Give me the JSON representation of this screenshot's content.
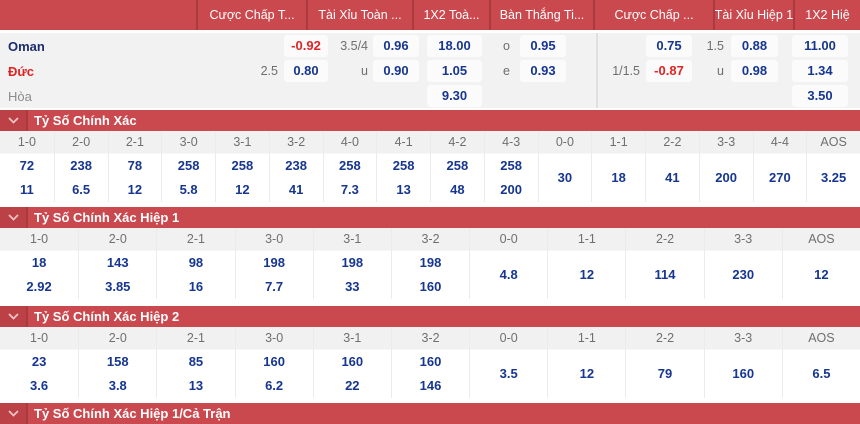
{
  "colors": {
    "accent_red": "#c9494f",
    "accent_red_dark": "#a93a40",
    "odds_blue": "#16368f",
    "negative_red": "#e02424"
  },
  "tabs": [
    "Cược Chấp T...",
    "Tài Xỉu Toàn ...",
    "1X2 Toà...",
    "Bàn Thắng Ti...",
    "Cược Chấp ...",
    "Tài Xỉu Hiệp 1",
    "1X2 Hiệ"
  ],
  "odds": {
    "rows": [
      {
        "team": "Oman",
        "hdp1_line": "",
        "hdp1_odds": "-0.92",
        "ou1_line": "3.5/4",
        "ou1_odds": "0.96",
        "x12": "18.00",
        "oe_side": "o",
        "oe_odds": "0.95",
        "hdp2_line": "",
        "hdp2_odds": "0.75",
        "ou2_line": "1.5",
        "ou2_odds": "0.88",
        "x12h": "11.00"
      },
      {
        "team": "Đức",
        "hdp1_line": "2.5",
        "hdp1_odds": "0.80",
        "ou1_line": "u",
        "ou1_odds": "0.90",
        "x12": "1.05",
        "oe_side": "e",
        "oe_odds": "0.93",
        "hdp2_line": "1/1.5",
        "hdp2_odds": "-0.87",
        "ou2_line": "u",
        "ou2_odds": "0.98",
        "x12h": "1.34"
      },
      {
        "team": "Hòa",
        "x12": "9.30",
        "x12h": "3.50"
      }
    ]
  },
  "sections": [
    {
      "title": "Tỷ Số Chính Xác",
      "columns": [
        "1-0",
        "2-0",
        "2-1",
        "3-0",
        "3-1",
        "3-2",
        "4-0",
        "4-1",
        "4-2",
        "4-3",
        "0-0",
        "1-1",
        "2-2",
        "3-3",
        "4-4",
        "AOS"
      ],
      "row1": [
        "72",
        "238",
        "78",
        "258",
        "258",
        "238",
        "258",
        "258",
        "258",
        "258"
      ],
      "row2": [
        "11",
        "6.5",
        "12",
        "5.8",
        "12",
        "41",
        "7.3",
        "13",
        "48",
        "200"
      ],
      "merged": [
        "30",
        "18",
        "41",
        "200",
        "270",
        "3.25"
      ]
    },
    {
      "title": "Tỷ Số Chính Xác Hiệp 1",
      "columns": [
        "1-0",
        "2-0",
        "2-1",
        "3-0",
        "3-1",
        "3-2",
        "0-0",
        "1-1",
        "2-2",
        "3-3",
        "AOS"
      ],
      "row1": [
        "18",
        "143",
        "98",
        "198",
        "198",
        "198"
      ],
      "row2": [
        "2.92",
        "3.85",
        "16",
        "7.7",
        "33",
        "160"
      ],
      "merged": [
        "4.8",
        "12",
        "114",
        "230",
        "12"
      ]
    },
    {
      "title": "Tỷ Số Chính Xác Hiệp 2",
      "columns": [
        "1-0",
        "2-0",
        "2-1",
        "3-0",
        "3-1",
        "3-2",
        "0-0",
        "1-1",
        "2-2",
        "3-3",
        "AOS"
      ],
      "row1": [
        "23",
        "158",
        "85",
        "160",
        "160",
        "160"
      ],
      "row2": [
        "3.6",
        "3.8",
        "13",
        "6.2",
        "22",
        "146"
      ],
      "merged": [
        "3.5",
        "12",
        "79",
        "160",
        "6.5"
      ]
    },
    {
      "title": "Tỷ Số Chính Xác Hiệp 1/Cả Trận"
    }
  ]
}
